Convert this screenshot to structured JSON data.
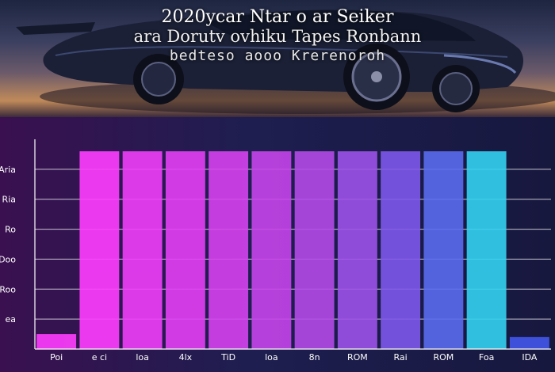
{
  "header": {
    "title": "2020ycar Ntar o ar Seiker",
    "subtitle": "ara Dorutv ovhiku Tapes Ronbann",
    "caption": "bedteso  aooo Krerenoroh"
  },
  "chart_data": {
    "type": "bar",
    "categories": [
      "Poi",
      "e ci",
      "loa",
      "4lx",
      "TiD",
      "loa",
      "8n",
      "ROM",
      "Rai",
      "ROM",
      "Foa",
      "IDA"
    ],
    "y_tick_labels": [
      "",
      "ea",
      "Roo",
      "Doo",
      "Ro",
      "Ria",
      "Aria"
    ],
    "ylim": [
      0,
      7
    ],
    "grid": true,
    "series": [
      {
        "values": [
          0.5,
          6.6,
          6.6,
          6.6,
          6.6,
          6.6,
          6.6,
          6.6,
          6.6,
          6.6,
          6.6,
          0.4
        ]
      }
    ],
    "colors": [
      "#ff3dff",
      "#ff3dff",
      "#f03ef8",
      "#e33ff4",
      "#d642ee",
      "#c744ea",
      "#b44ae8",
      "#9c52e8",
      "#7e58ea",
      "#5a6bee",
      "#33d2f0",
      "#4257ea"
    ]
  }
}
